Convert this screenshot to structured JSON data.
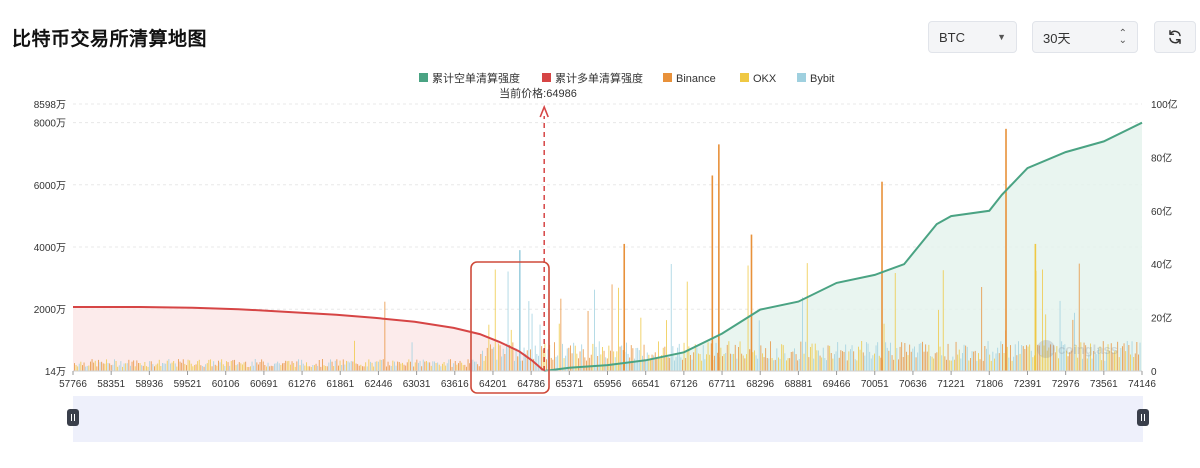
{
  "page": {
    "title": "比特币交易所清算地图"
  },
  "controls": {
    "coin": {
      "value": "BTC"
    },
    "range": {
      "value": "30天"
    },
    "refresh": {
      "icon": "refresh-icon"
    }
  },
  "colors": {
    "short_line": "#4aa383",
    "short_fill": "#e4f3ec",
    "long_line": "#d64545",
    "long_fill": "#fbe6e6",
    "binance": "#e8913a",
    "okx": "#efc843",
    "bybit": "#9fd0df",
    "price_marker": "#d64545",
    "highlight_box": "#cf4a3a",
    "slider_bg": "#eef0fb"
  },
  "chart_data": {
    "type": "bar+area",
    "current_price_label": "当前价格:64986",
    "current_price": 64986,
    "legend": [
      {
        "name": "累计空单清算强度",
        "color": "#4aa383"
      },
      {
        "name": "累计多单清算强度",
        "color": "#d64545"
      },
      {
        "name": "Binance",
        "color": "#e8913a"
      },
      {
        "name": "OKX",
        "color": "#efc843"
      },
      {
        "name": "Bybit",
        "color": "#9fd0df"
      }
    ],
    "x_range": [
      57766,
      74146
    ],
    "x_ticks": [
      "57766",
      "58351",
      "58936",
      "59521",
      "60106",
      "60691",
      "61276",
      "61861",
      "62446",
      "63031",
      "63616",
      "64201",
      "64786",
      "65371",
      "65956",
      "66541",
      "67126",
      "67711",
      "68296",
      "68881",
      "69466",
      "70051",
      "70636",
      "71221",
      "71806",
      "72391",
      "72976",
      "73561",
      "74146"
    ],
    "left_axis": {
      "ticks": [
        "14万",
        "2000万",
        "4000万",
        "6000万",
        "8000万",
        "8598万"
      ],
      "values": [
        140000,
        20000000,
        40000000,
        60000000,
        80000000,
        85980000
      ],
      "range": [
        140000,
        85980000
      ]
    },
    "right_axis": {
      "ticks": [
        "0",
        "20亿",
        "40亿",
        "60亿",
        "80亿",
        "100亿"
      ],
      "values": [
        0,
        2000000000,
        4000000000,
        6000000000,
        8000000000,
        10000000000
      ],
      "range": [
        0,
        10000000000
      ]
    },
    "cumulative_long": {
      "name": "累计多单清算强度",
      "points": [
        [
          57766,
          20700000
        ],
        [
          58800,
          20700000
        ],
        [
          59600,
          20500000
        ],
        [
          60300,
          20000000
        ],
        [
          61000,
          19200000
        ],
        [
          61800,
          18200000
        ],
        [
          62400,
          17200000
        ],
        [
          63000,
          16000000
        ],
        [
          63600,
          14000000
        ],
        [
          64000,
          12000000
        ],
        [
          64300,
          9500000
        ],
        [
          64600,
          6500000
        ],
        [
          64800,
          3500000
        ],
        [
          64986,
          140000
        ]
      ]
    },
    "cumulative_short": {
      "name": "累计空单清算强度",
      "points": [
        [
          64986,
          0
        ],
        [
          65371,
          120000000
        ],
        [
          65956,
          220000000
        ],
        [
          66541,
          400000000
        ],
        [
          67126,
          700000000
        ],
        [
          67711,
          1400000000
        ],
        [
          68296,
          2300000000
        ],
        [
          68881,
          2600000000
        ],
        [
          69466,
          3300000000
        ],
        [
          70051,
          3600000000
        ],
        [
          70500,
          4000000000
        ],
        [
          71000,
          5500000000
        ],
        [
          71221,
          5800000000
        ],
        [
          71806,
          6000000000
        ],
        [
          72000,
          6600000000
        ],
        [
          72391,
          7600000000
        ],
        [
          72976,
          8200000000
        ],
        [
          73561,
          8600000000
        ],
        [
          74146,
          9300000000
        ]
      ]
    },
    "notable_bars": [
      {
        "x": 64600,
        "value": 39000000,
        "exchange": "Bybit"
      },
      {
        "x": 67650,
        "value": 73000000,
        "exchange": "Binance"
      },
      {
        "x": 67550,
        "value": 63000000,
        "exchange": "Binance"
      },
      {
        "x": 70150,
        "value": 61000000,
        "exchange": "Binance"
      },
      {
        "x": 72050,
        "value": 78000000,
        "exchange": "Binance"
      },
      {
        "x": 68150,
        "value": 44000000,
        "exchange": "Binance"
      },
      {
        "x": 66200,
        "value": 41000000,
        "exchange": "Binance"
      },
      {
        "x": 72500,
        "value": 41000000,
        "exchange": "OKX"
      }
    ]
  }
}
